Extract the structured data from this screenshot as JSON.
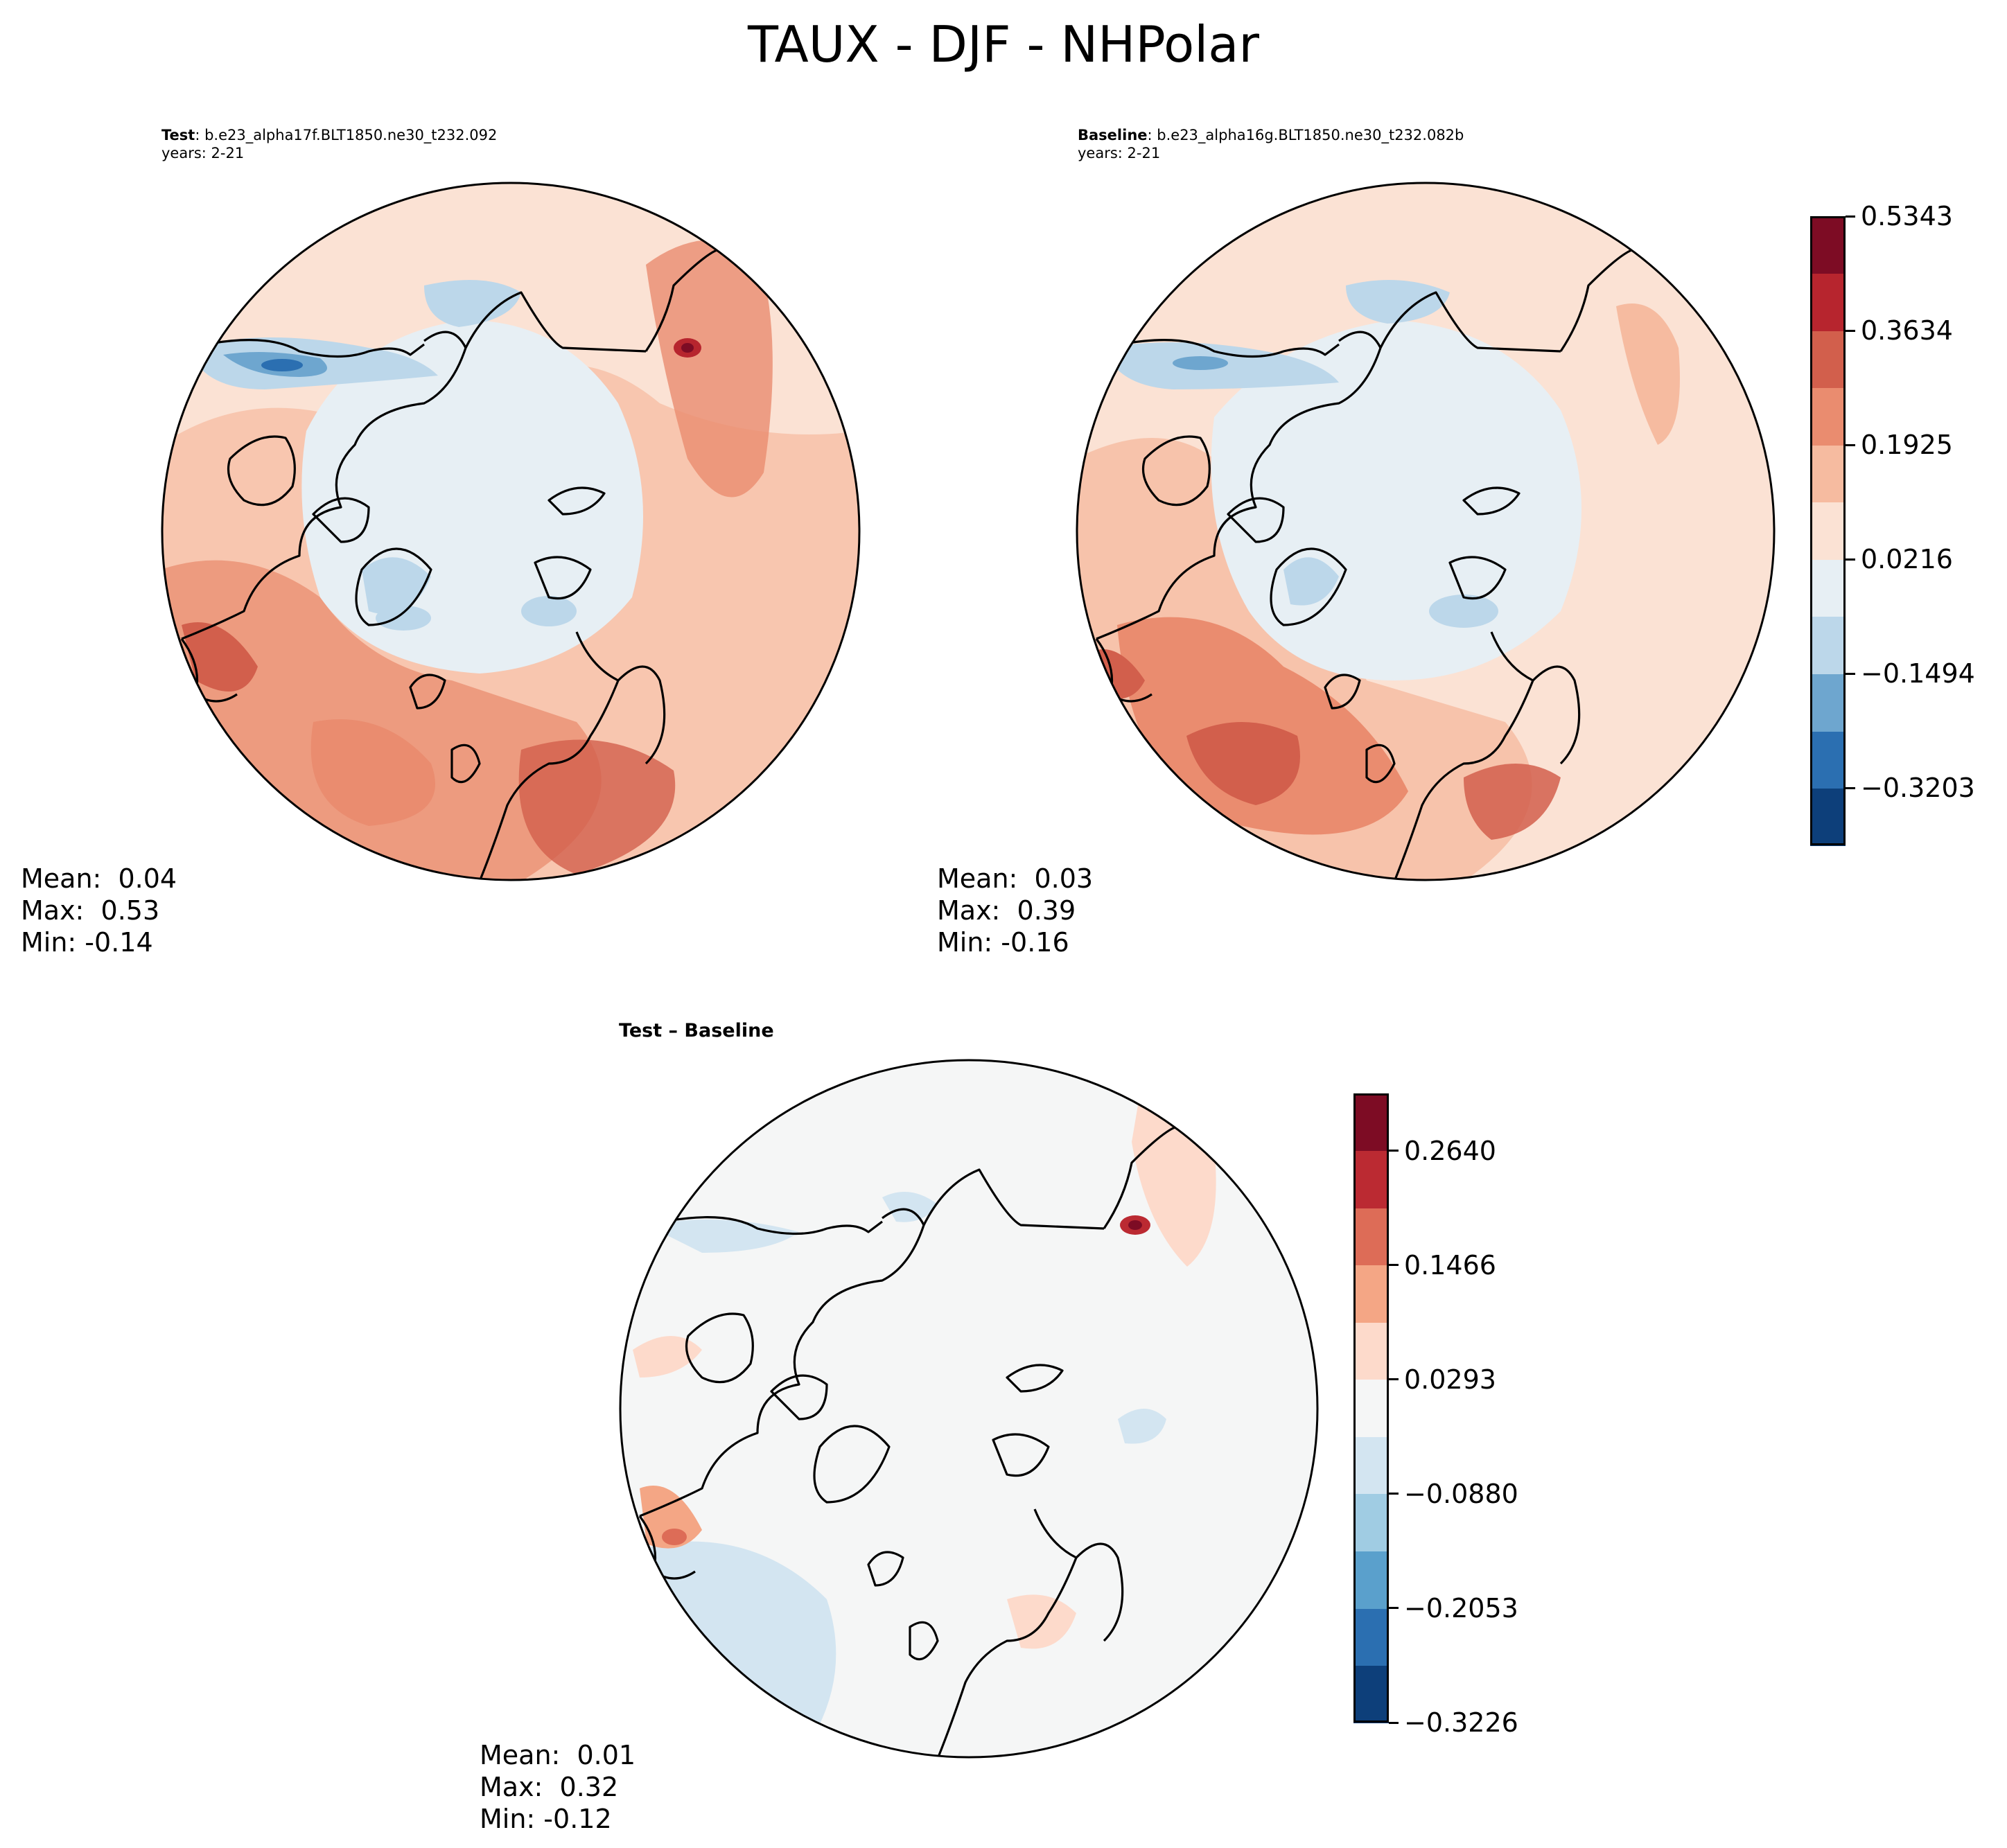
{
  "title": "TAUX - DJF - NHPolar",
  "panels": [
    {
      "id": "test",
      "label": "Test",
      "case": ": b.e23_alpha17f.BLT1850.ne30_t232.092",
      "years": "years: 2-21",
      "stats": {
        "mean": "Mean:  0.04",
        "max": "Max:  0.53",
        "min": "Min: -0.14"
      }
    },
    {
      "id": "baseline",
      "label": "Baseline",
      "case": ": b.e23_alpha16g.BLT1850.ne30_t232.082b",
      "years": "years: 2-21",
      "stats": {
        "mean": "Mean:  0.03",
        "max": "Max:  0.39",
        "min": "Min: -0.16"
      }
    },
    {
      "id": "diff",
      "label": "Test – Baseline",
      "stats": {
        "mean": "Mean:  0.01",
        "max": "Max:  0.32",
        "min": "Min: -0.12"
      }
    }
  ],
  "colorbars": {
    "main": {
      "colors": [
        "#0d3f7a",
        "#2b6fb1",
        "#6ea6cf",
        "#bcd7ea",
        "#e7eff4",
        "#fbe2d4",
        "#f6bba0",
        "#ea8c6f",
        "#d25f4c",
        "#b7252e",
        "#7d0c24"
      ],
      "ticks": [
        "−0.3203",
        "−0.1494",
        "0.0216",
        "0.1925",
        "0.3634",
        "0.5343"
      ]
    },
    "diff": {
      "colors": [
        "#0d3f7a",
        "#2b6fb1",
        "#5aa0cc",
        "#a0cce3",
        "#d3e5f1",
        "#f5f6f6",
        "#fddacb",
        "#f4a685",
        "#dd6c57",
        "#bb2a32",
        "#7d0c24"
      ],
      "ticks": [
        "−0.3226",
        "−0.2053",
        "−0.0880",
        "0.0293",
        "0.1466",
        "0.2640"
      ]
    }
  }
}
